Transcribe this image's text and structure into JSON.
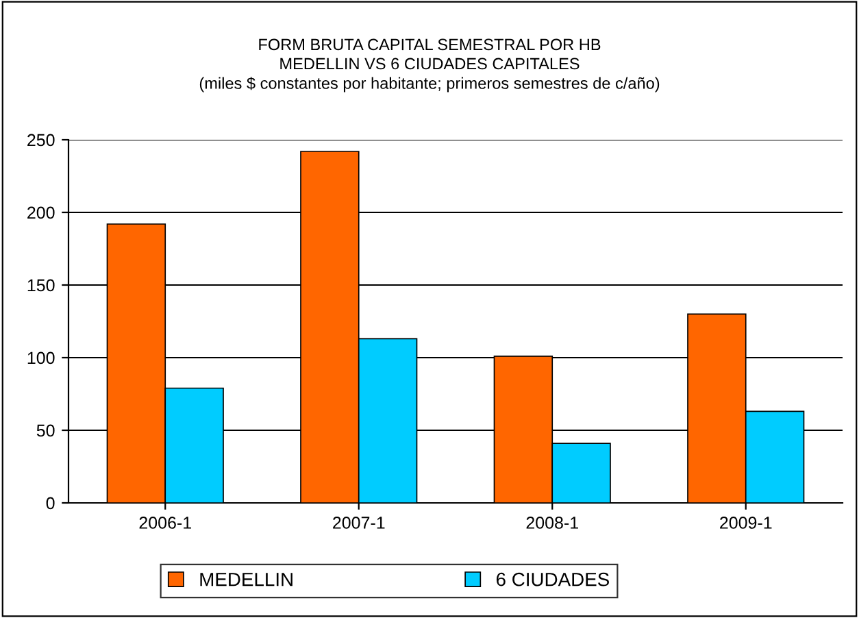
{
  "chart_data": {
    "type": "bar",
    "title": "FORM BRUTA CAPITAL SEMESTRAL POR HB\nMEDELLIN VS 6 CIUDADES CAPITALES\n(miles $ constantes por habitante; primeros semestres de c/año)",
    "categories": [
      "2006-1",
      "2007-1",
      "2008-1",
      "2009-1"
    ],
    "series": [
      {
        "name": "MEDELLIN",
        "color": "#ff6600",
        "values": [
          192,
          242,
          101,
          130
        ]
      },
      {
        "name": "6 CIUDADES",
        "color": "#00ccff",
        "values": [
          79,
          113,
          41,
          63
        ]
      }
    ],
    "ylim": [
      0,
      250
    ],
    "yticks": [
      0,
      50,
      100,
      150,
      200,
      250
    ],
    "grid": "y",
    "legend": "bottom"
  }
}
